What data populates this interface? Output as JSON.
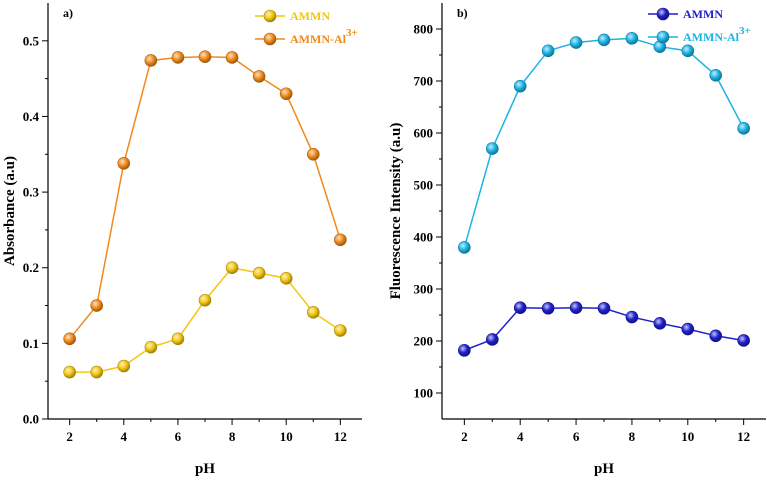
{
  "chart_data": [
    {
      "type": "line",
      "panel_label": "a)",
      "xlabel": "pH",
      "ylabel": "Absorbance (a.u)",
      "xlim": [
        1.2,
        12.8
      ],
      "ylim": [
        0.0,
        0.55
      ],
      "xticks": [
        2,
        4,
        6,
        8,
        10,
        12
      ],
      "yticks": [
        0.0,
        0.1,
        0.2,
        0.3,
        0.4,
        0.5
      ],
      "ytick_labels": [
        "0.0",
        "0.1",
        "0.2",
        "0.3",
        "0.4",
        "0.5"
      ],
      "legend_position": "top-right",
      "x": [
        2,
        3,
        4,
        5,
        6,
        7,
        8,
        9,
        10,
        11,
        12
      ],
      "series": [
        {
          "name": "AMMN",
          "legend_base": "AMMN",
          "legend_sup": "",
          "color": "#F2C60F",
          "values": [
            0.062,
            0.062,
            0.07,
            0.095,
            0.106,
            0.157,
            0.2,
            0.193,
            0.186,
            0.141,
            0.117
          ]
        },
        {
          "name": "AMMN-Al3+",
          "legend_base": "AMMN-Al",
          "legend_sup": "3+",
          "color": "#F08A1A",
          "values": [
            0.106,
            0.15,
            0.338,
            0.474,
            0.478,
            0.479,
            0.478,
            0.453,
            0.43,
            0.35,
            0.237
          ]
        }
      ]
    },
    {
      "type": "line",
      "panel_label": "b)",
      "xlabel": "pH",
      "ylabel": "Fluorescence Intensity (a.u)",
      "xlim": [
        1.2,
        12.8
      ],
      "ylim": [
        50,
        850
      ],
      "xticks": [
        2,
        4,
        6,
        8,
        10,
        12
      ],
      "yticks": [
        100,
        200,
        300,
        400,
        500,
        600,
        700,
        800
      ],
      "ytick_labels": [
        "100",
        "200",
        "300",
        "400",
        "500",
        "600",
        "700",
        "800"
      ],
      "legend_position": "top-right",
      "x": [
        2,
        3,
        4,
        5,
        6,
        7,
        8,
        9,
        10,
        11,
        12
      ],
      "series": [
        {
          "name": "AMMN",
          "legend_base": "AMMN",
          "legend_sup": "",
          "color": "#1F1FCC",
          "values": [
            182,
            203,
            264,
            263,
            264,
            263,
            246,
            234,
            223,
            210,
            201
          ]
        },
        {
          "name": "AMMN-Al3+",
          "legend_base": "AMMN-Al",
          "legend_sup": "3+",
          "color": "#1BB3E6",
          "values": [
            380,
            570,
            690,
            758,
            774,
            779,
            782,
            766,
            758,
            711,
            609
          ]
        }
      ]
    }
  ]
}
